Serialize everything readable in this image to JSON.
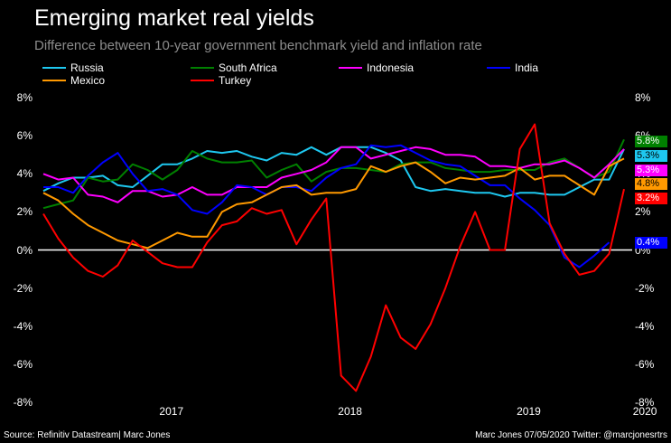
{
  "header": {
    "title": "Emerging market real yields",
    "subtitle": "Difference between 10-year government benchmark yield and inflation rate"
  },
  "footer": {
    "source": "Source: Refinitiv Datastream| Marc Jones",
    "credit": "Marc Jones 07/05/2020 Twitter: @marcjonesrtrs"
  },
  "chart_data": {
    "type": "line",
    "title": "Emerging market real yields",
    "subtitle": "Difference between 10-year government benchmark yield and inflation rate",
    "xlabel": "",
    "ylabel": "",
    "ylim": [
      -8,
      8
    ],
    "yticks": [
      "8%",
      "6%",
      "4%",
      "2%",
      "0%",
      "-2%",
      "-4%",
      "-6%",
      "-8%"
    ],
    "ytick_values": [
      8,
      6,
      4,
      2,
      0,
      -2,
      -4,
      -6,
      -8
    ],
    "xticks": [
      "2017",
      "2018",
      "2019",
      "2020"
    ],
    "xtick_positions": [
      8.6,
      20.6,
      32.6,
      40.4
    ],
    "x_start_index": 0,
    "legend_position": "top",
    "zero_line": true,
    "series": [
      {
        "name": "Russia",
        "color": "#1ec8f0",
        "end_label": "5.3%",
        "end_label_text_color": "#000000",
        "values": [
          3.1,
          3.5,
          3.8,
          3.8,
          3.9,
          3.4,
          3.3,
          3.9,
          4.5,
          4.5,
          4.8,
          5.2,
          5.1,
          5.2,
          4.9,
          4.7,
          5.1,
          5.0,
          5.4,
          5.0,
          5.4,
          5.4,
          5.4,
          5.1,
          4.7,
          3.3,
          3.1,
          3.2,
          3.1,
          3.0,
          3.0,
          2.8,
          3.0,
          3.0,
          2.9,
          2.9,
          3.3,
          3.7,
          3.7,
          5.3
        ]
      },
      {
        "name": "South Africa",
        "color": "#008000",
        "end_label": "5.8%",
        "end_label_text_color": "#ffffff",
        "values": [
          2.2,
          2.4,
          2.6,
          3.8,
          3.6,
          3.7,
          4.5,
          4.2,
          3.7,
          4.2,
          5.2,
          4.8,
          4.6,
          4.6,
          4.7,
          3.8,
          4.2,
          4.5,
          3.6,
          4.1,
          4.3,
          4.3,
          4.2,
          4.1,
          4.5,
          4.6,
          4.6,
          4.3,
          4.2,
          4.1,
          4.1,
          4.2,
          4.2,
          4.2,
          4.6,
          4.8,
          4.3,
          3.8,
          4.1,
          5.8
        ]
      },
      {
        "name": "Indonesia",
        "color": "#ff00ff",
        "end_label": "5.3%",
        "end_label_text_color": "#ffffff",
        "values": [
          4.0,
          3.7,
          3.8,
          2.9,
          2.8,
          2.5,
          3.1,
          3.1,
          2.8,
          2.9,
          3.3,
          2.9,
          2.9,
          3.3,
          3.3,
          3.3,
          3.8,
          4.0,
          4.2,
          4.6,
          5.4,
          5.4,
          4.8,
          5.0,
          5.2,
          5.4,
          5.3,
          5.0,
          5.0,
          4.9,
          4.4,
          4.4,
          4.3,
          4.5,
          4.5,
          4.7,
          4.3,
          3.8,
          4.5,
          5.3
        ]
      },
      {
        "name": "India",
        "color": "#0000ff",
        "end_label": "0.4%",
        "end_label_text_color": "#ffffff",
        "values": [
          3.3,
          3.3,
          3.0,
          3.9,
          4.6,
          5.1,
          4.0,
          3.1,
          3.2,
          2.9,
          2.1,
          1.9,
          2.5,
          3.4,
          3.3,
          2.9,
          3.3,
          3.3,
          3.1,
          3.8,
          4.3,
          4.5,
          5.5,
          5.4,
          5.5,
          5.1,
          4.7,
          4.5,
          4.4,
          3.9,
          3.4,
          3.4,
          2.7,
          2.1,
          1.3,
          -0.4,
          -0.9,
          -0.3,
          0.4,
          null
        ]
      },
      {
        "name": "Mexico",
        "color": "#ff9900",
        "end_label": "4.8%",
        "end_label_text_color": "#000000",
        "values": [
          3.0,
          2.6,
          1.9,
          1.3,
          0.9,
          0.5,
          0.3,
          0.1,
          0.5,
          0.9,
          0.7,
          0.7,
          2.0,
          2.4,
          2.5,
          2.9,
          3.3,
          3.4,
          2.9,
          3.0,
          3.0,
          3.2,
          4.4,
          4.1,
          4.4,
          4.6,
          4.1,
          3.5,
          3.8,
          3.7,
          3.8,
          3.9,
          4.3,
          3.7,
          3.9,
          3.9,
          3.4,
          2.9,
          4.4,
          4.8
        ]
      },
      {
        "name": "Turkey",
        "color": "#ff0000",
        "end_label": "3.2%",
        "end_label_text_color": "#ffffff",
        "values": [
          1.9,
          0.6,
          -0.4,
          -1.1,
          -1.4,
          -0.8,
          0.5,
          -0.1,
          -0.7,
          -0.9,
          -0.9,
          0.4,
          1.3,
          1.5,
          2.2,
          1.9,
          2.1,
          0.3,
          1.6,
          2.7,
          -6.6,
          -7.4,
          -5.6,
          -2.9,
          -4.6,
          -5.2,
          -3.9,
          -2.0,
          0.2,
          2.0,
          0.0,
          0.0,
          5.3,
          6.6,
          1.4,
          -0.2,
          -1.3,
          -1.1,
          -0.2,
          3.2
        ]
      }
    ]
  }
}
